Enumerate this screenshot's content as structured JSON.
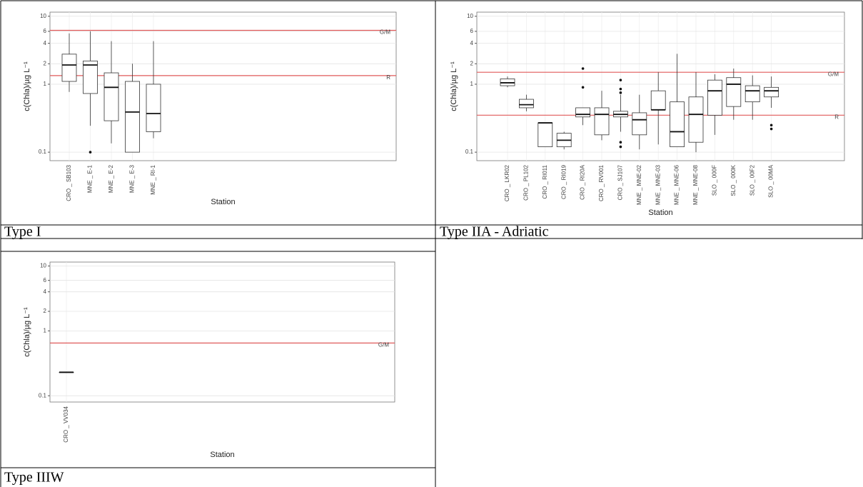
{
  "chart_data": [
    {
      "type": "box",
      "y_label": "c(Chla)/µg L⁻¹",
      "x_label": "Station",
      "log_y": true,
      "grid": true,
      "ylim": [
        0.075,
        11.5
      ],
      "yticks": [
        0.1,
        1,
        2,
        4,
        6,
        10
      ],
      "hlines": [
        {
          "value": 6.2,
          "label": "G/M",
          "color": "#e05a5a"
        },
        {
          "value": 1.34,
          "label": "R",
          "color": "#e05a5a"
        }
      ],
      "categories": [
        "CRO _ SB103",
        "MNE _ E-1",
        "MNE _ E-2",
        "MNE _ E-3",
        "MNE _ RI-1"
      ],
      "boxes": [
        {
          "min": 0.77,
          "q1": 1.1,
          "median": 1.92,
          "q3": 2.77,
          "max": 5.6
        },
        {
          "min": 0.245,
          "q1": 0.73,
          "median": 1.92,
          "q3": 2.2,
          "max": 6.0,
          "outliers": [
            0.1
          ]
        },
        {
          "min": 0.135,
          "q1": 0.29,
          "median": 0.9,
          "q3": 1.47,
          "max": 4.3
        },
        {
          "min": 0.1,
          "q1": 0.1,
          "median": 0.39,
          "q3": 1.1,
          "max": 2.0
        },
        {
          "min": 0.16,
          "q1": 0.2,
          "median": 0.37,
          "q3": 1.0,
          "max": 4.3
        }
      ]
    },
    {
      "type": "box",
      "y_label": "c(Chla)/µg L⁻¹",
      "x_label": "Station",
      "log_y": true,
      "grid": true,
      "ylim": [
        0.075,
        11.5
      ],
      "yticks": [
        0.1,
        1,
        2,
        4,
        6,
        10
      ],
      "hlines": [
        {
          "value": 1.5,
          "label": "G/M",
          "color": "#e05a5a"
        },
        {
          "value": 0.35,
          "label": "R",
          "color": "#e05a5a"
        }
      ],
      "categories": [
        "CRO _ LKR02",
        "CRO _ PL102",
        "CRO _ RI011",
        "CRO _ RI019",
        "CRO _ RI20A",
        "CRO _ RV001",
        "CRO _ SJ107",
        "MNE _ MNE-02",
        "MNE _ MNE-03",
        "MNE _ MNE-06",
        "MNE _ MNE-08",
        "SLO _ 000F",
        "SLO _ 000K",
        "SLO _ 00F2",
        "SLO _ 00MA"
      ],
      "boxes": [
        {
          "min": 0.9,
          "q1": 0.95,
          "median": 1.05,
          "q3": 1.2,
          "max": 1.3
        },
        {
          "min": 0.4,
          "q1": 0.45,
          "median": 0.5,
          "q3": 0.6,
          "max": 0.7
        },
        {
          "min": 0.12,
          "q1": 0.12,
          "median": 0.27,
          "q3": 0.27,
          "max": 0.27
        },
        {
          "min": 0.11,
          "q1": 0.12,
          "median": 0.15,
          "q3": 0.19,
          "max": 0.2
        },
        {
          "min": 0.25,
          "q1": 0.33,
          "median": 0.36,
          "q3": 0.45,
          "max": 0.45,
          "outliers": [
            1.7,
            0.9
          ]
        },
        {
          "min": 0.15,
          "q1": 0.18,
          "median": 0.36,
          "q3": 0.45,
          "max": 0.8
        },
        {
          "min": 0.2,
          "q1": 0.33,
          "median": 0.36,
          "q3": 0.4,
          "max": 0.7,
          "outliers": [
            1.15,
            0.85,
            0.75,
            0.14,
            0.12
          ]
        },
        {
          "min": 0.11,
          "q1": 0.18,
          "median": 0.3,
          "q3": 0.38,
          "max": 0.7
        },
        {
          "min": 0.13,
          "q1": 0.42,
          "median": 0.42,
          "q3": 0.8,
          "max": 1.5
        },
        {
          "min": 0.12,
          "q1": 0.12,
          "median": 0.2,
          "q3": 0.55,
          "max": 2.8
        },
        {
          "min": 0.1,
          "q1": 0.14,
          "median": 0.36,
          "q3": 0.65,
          "max": 1.5
        },
        {
          "min": 0.18,
          "q1": 0.35,
          "median": 0.8,
          "q3": 1.15,
          "max": 1.4
        },
        {
          "min": 0.3,
          "q1": 0.47,
          "median": 1.0,
          "q3": 1.25,
          "max": 1.7
        },
        {
          "min": 0.3,
          "q1": 0.55,
          "median": 0.8,
          "q3": 0.95,
          "max": 1.35
        },
        {
          "min": 0.45,
          "q1": 0.65,
          "median": 0.8,
          "q3": 0.9,
          "max": 1.3,
          "outliers": [
            0.25,
            0.22
          ]
        }
      ]
    },
    {
      "type": "box",
      "y_label": "c(Chla)/µg L⁻¹",
      "x_label": "Station",
      "log_y": true,
      "grid": true,
      "ylim": [
        0.08,
        11.5
      ],
      "yticks": [
        0.1,
        1,
        2,
        4,
        6,
        10
      ],
      "hlines": [
        {
          "value": 0.65,
          "label": "G/M",
          "color": "#e05a5a"
        }
      ],
      "categories": [
        "CRO _ VV034"
      ],
      "boxes": [
        {
          "min": 0.23,
          "q1": 0.23,
          "median": 0.23,
          "q3": 0.23,
          "max": 0.23
        }
      ]
    }
  ],
  "captions": [
    "Type I",
    "Type IIA - Adriatic",
    "Type IIIW"
  ]
}
